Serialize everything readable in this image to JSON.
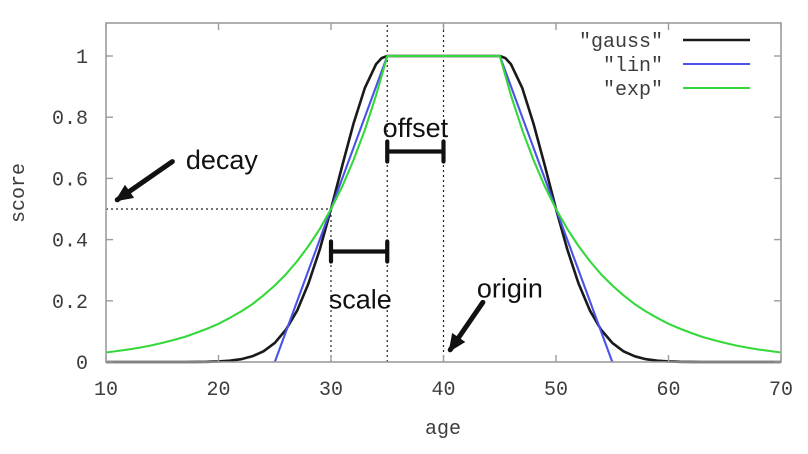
{
  "chart_data": {
    "type": "line",
    "title": "",
    "xlabel": "age",
    "ylabel": "score",
    "xlim": [
      10,
      70
    ],
    "ylim": [
      0,
      1.108
    ],
    "grid": false,
    "legend_position": "top-right",
    "frame_color": "#9c9c9c",
    "tick_text_color": "#3d3d3d",
    "xtick_values": [
      10,
      20,
      30,
      40,
      50,
      60,
      70
    ],
    "xtick_labels": [
      "10",
      "20",
      "30",
      "40",
      "50",
      "60",
      "70"
    ],
    "ytick_values": [
      0,
      0.2,
      0.4,
      0.6,
      0.8,
      1
    ],
    "ytick_labels": [
      "0",
      "0.2",
      "0.4",
      "0.6",
      "0.8",
      "1"
    ],
    "decay_params": {
      "origin": 40,
      "offset": 5,
      "scale": 5,
      "decay": 0.5
    },
    "series": [
      {
        "name": "\"gauss\"",
        "color": "#1a1a1a",
        "width": 2.6,
        "points": [
          [
            10,
            0
          ],
          [
            11,
            0
          ],
          [
            12,
            0
          ],
          [
            13,
            0
          ],
          [
            14,
            0
          ],
          [
            15,
            0
          ],
          [
            16,
            0
          ],
          [
            17,
            0.0001
          ],
          [
            18,
            0.0003
          ],
          [
            19,
            0.0008
          ],
          [
            20,
            0.002
          ],
          [
            21,
            0.0044
          ],
          [
            22,
            0.0093
          ],
          [
            23,
            0.0185
          ],
          [
            24,
            0.035
          ],
          [
            25,
            0.0625
          ],
          [
            26,
            0.106
          ],
          [
            27,
            0.169
          ],
          [
            28,
            0.257
          ],
          [
            29,
            0.368
          ],
          [
            30,
            0.5
          ],
          [
            31,
            0.642
          ],
          [
            32,
            0.779
          ],
          [
            33,
            0.895
          ],
          [
            34,
            0.973
          ],
          [
            34.5,
            0.993
          ],
          [
            35,
            1
          ],
          [
            45,
            1
          ],
          [
            45.5,
            0.993
          ],
          [
            46,
            0.973
          ],
          [
            47,
            0.895
          ],
          [
            48,
            0.779
          ],
          [
            49,
            0.642
          ],
          [
            50,
            0.5
          ],
          [
            51,
            0.368
          ],
          [
            52,
            0.257
          ],
          [
            53,
            0.169
          ],
          [
            54,
            0.106
          ],
          [
            55,
            0.0625
          ],
          [
            56,
            0.035
          ],
          [
            57,
            0.0185
          ],
          [
            58,
            0.0093
          ],
          [
            59,
            0.0044
          ],
          [
            60,
            0.002
          ],
          [
            61,
            0.0008
          ],
          [
            62,
            0.0003
          ],
          [
            63,
            0.0001
          ],
          [
            64,
            0
          ],
          [
            65,
            0
          ],
          [
            66,
            0
          ],
          [
            67,
            0
          ],
          [
            68,
            0
          ],
          [
            69,
            0
          ],
          [
            70,
            0
          ]
        ]
      },
      {
        "name": "\"lin\"",
        "color": "#4a52e8",
        "width": 2.1,
        "points": [
          [
            25,
            0
          ],
          [
            30,
            0.5
          ],
          [
            35,
            1
          ],
          [
            45,
            1
          ],
          [
            50,
            0.5
          ],
          [
            55,
            0
          ]
        ]
      },
      {
        "name": "\"exp\"",
        "color": "#35d83a",
        "width": 2.1,
        "points": [
          [
            10,
            0.031
          ],
          [
            11,
            0.036
          ],
          [
            12,
            0.041
          ],
          [
            13,
            0.047
          ],
          [
            14,
            0.054
          ],
          [
            15,
            0.0625
          ],
          [
            16,
            0.072
          ],
          [
            17,
            0.082
          ],
          [
            18,
            0.095
          ],
          [
            19,
            0.109
          ],
          [
            20,
            0.125
          ],
          [
            21,
            0.144
          ],
          [
            22,
            0.165
          ],
          [
            23,
            0.189
          ],
          [
            24,
            0.218
          ],
          [
            25,
            0.25
          ],
          [
            26,
            0.287
          ],
          [
            27,
            0.33
          ],
          [
            28,
            0.379
          ],
          [
            29,
            0.435
          ],
          [
            30,
            0.5
          ],
          [
            31,
            0.574
          ],
          [
            32,
            0.66
          ],
          [
            33,
            0.758
          ],
          [
            34,
            0.871
          ],
          [
            35,
            1
          ],
          [
            45,
            1
          ],
          [
            46,
            0.871
          ],
          [
            47,
            0.758
          ],
          [
            48,
            0.66
          ],
          [
            49,
            0.574
          ],
          [
            50,
            0.5
          ],
          [
            51,
            0.435
          ],
          [
            52,
            0.379
          ],
          [
            53,
            0.33
          ],
          [
            54,
            0.287
          ],
          [
            55,
            0.25
          ],
          [
            56,
            0.218
          ],
          [
            57,
            0.189
          ],
          [
            58,
            0.165
          ],
          [
            59,
            0.144
          ],
          [
            60,
            0.125
          ],
          [
            61,
            0.109
          ],
          [
            62,
            0.095
          ],
          [
            63,
            0.082
          ],
          [
            64,
            0.072
          ],
          [
            65,
            0.0625
          ],
          [
            66,
            0.054
          ],
          [
            67,
            0.047
          ],
          [
            68,
            0.041
          ],
          [
            69,
            0.036
          ],
          [
            70,
            0.031
          ]
        ]
      }
    ],
    "guides": [
      {
        "kind": "hline",
        "y": 0.5,
        "x1": 10,
        "x2": 30
      },
      {
        "kind": "vline",
        "x": 30,
        "y1": 0,
        "y2": 0.5
      },
      {
        "kind": "vline",
        "x": 35,
        "y1": 0,
        "y2": 1.108
      },
      {
        "kind": "vline",
        "x": 40,
        "y1": 0,
        "y2": 1.108
      }
    ],
    "brackets": [
      {
        "label": "offset",
        "x1": 35,
        "x2": 40,
        "y": 0.688,
        "label_x": 37.5,
        "label_y": 0.765
      },
      {
        "label": "scale",
        "x1": 30,
        "x2": 35,
        "y": 0.361,
        "label_x": 32.6,
        "label_y": 0.205
      }
    ],
    "arrows": [
      {
        "label": "decay",
        "label_x": 20.3,
        "label_y": 0.66,
        "from": [
          15.9,
          0.655
        ],
        "to": [
          11.0,
          0.53
        ]
      },
      {
        "label": "origin",
        "label_x": 45.9,
        "label_y": 0.24,
        "from": [
          43.5,
          0.195
        ],
        "to": [
          40.6,
          0.04
        ]
      }
    ]
  }
}
